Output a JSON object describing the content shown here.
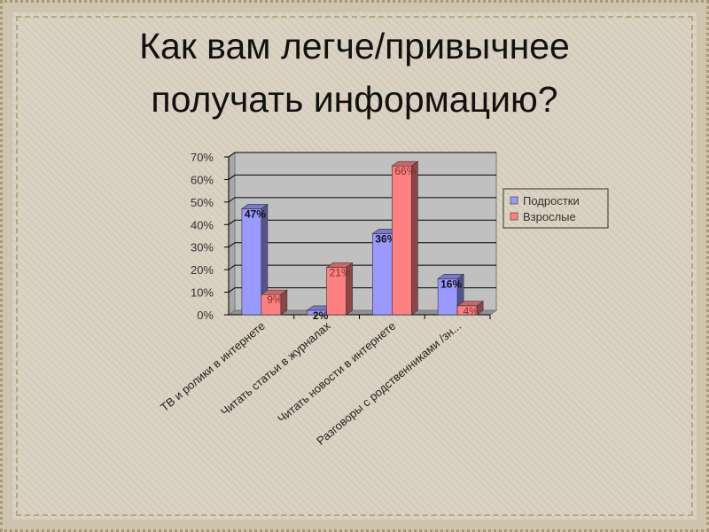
{
  "slide": {
    "title_line1": "Как вам легче/привычнее",
    "title_line2": "получать информацию?"
  },
  "chart_data": {
    "type": "bar",
    "style": "3d-clustered",
    "title": "",
    "categories": [
      "ТВ и ролики в интернете",
      "Читать статьи в журналах",
      "Читать новости в интернете",
      "Разговоры с родственниками /зн..."
    ],
    "series": [
      {
        "name": "Подростки",
        "values": [
          47,
          2,
          36,
          16
        ],
        "labels": [
          "47%",
          "2%",
          "36%",
          "16%"
        ],
        "color": "#9999ff"
      },
      {
        "name": "Взрослые",
        "values": [
          9,
          21,
          66,
          4
        ],
        "labels": [
          "9%",
          "21%",
          "66%",
          "4%"
        ],
        "color": "#ff8080"
      }
    ],
    "ylim": [
      0,
      70
    ],
    "yticks": [
      "0%",
      "10%",
      "20%",
      "30%",
      "40%",
      "50%",
      "60%",
      "70%"
    ],
    "grid": true,
    "legend": "right",
    "plot_background": "#c0c0c0"
  }
}
